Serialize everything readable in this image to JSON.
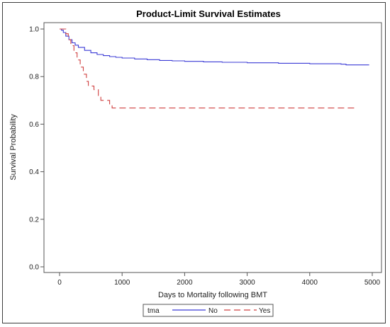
{
  "chart_data": {
    "type": "line",
    "title": "Product-Limit Survival Estimates",
    "xlabel": "Days to Mortality following BMT",
    "ylabel": "Survival Probability",
    "xlim": [
      -300,
      5000
    ],
    "ylim": [
      0,
      1.0
    ],
    "xticks": [
      "0",
      "1000",
      "2000",
      "3000",
      "4000",
      "5000"
    ],
    "yticks": [
      "0.0",
      "0.2",
      "0.4",
      "0.6",
      "0.8",
      "1.0"
    ],
    "legend": {
      "title": "tma",
      "position": "bottom",
      "entries": [
        "No",
        "Yes"
      ]
    },
    "series": [
      {
        "name": "No",
        "color": "#3b3bd6",
        "dash": "solid",
        "step": true,
        "points": [
          [
            0,
            1.0
          ],
          [
            30,
            0.995
          ],
          [
            60,
            0.985
          ],
          [
            100,
            0.97
          ],
          [
            150,
            0.955
          ],
          [
            200,
            0.942
          ],
          [
            250,
            0.932
          ],
          [
            300,
            0.923
          ],
          [
            400,
            0.91
          ],
          [
            500,
            0.9
          ],
          [
            600,
            0.893
          ],
          [
            700,
            0.888
          ],
          [
            800,
            0.884
          ],
          [
            900,
            0.881
          ],
          [
            1000,
            0.878
          ],
          [
            1200,
            0.874
          ],
          [
            1400,
            0.871
          ],
          [
            1600,
            0.868
          ],
          [
            1800,
            0.866
          ],
          [
            2000,
            0.864
          ],
          [
            2300,
            0.862
          ],
          [
            2600,
            0.86
          ],
          [
            3000,
            0.858
          ],
          [
            3500,
            0.856
          ],
          [
            4000,
            0.854
          ],
          [
            4500,
            0.852
          ],
          [
            4580,
            0.849
          ],
          [
            4950,
            0.849
          ]
        ]
      },
      {
        "name": "Yes",
        "color": "#d04040",
        "dash": "dashed",
        "step": true,
        "points": [
          [
            0,
            1.0
          ],
          [
            100,
            0.98
          ],
          [
            140,
            0.955
          ],
          [
            180,
            0.93
          ],
          [
            230,
            0.9
          ],
          [
            280,
            0.87
          ],
          [
            330,
            0.84
          ],
          [
            380,
            0.81
          ],
          [
            430,
            0.78
          ],
          [
            460,
            0.76
          ],
          [
            550,
            0.745
          ],
          [
            620,
            0.72
          ],
          [
            660,
            0.7
          ],
          [
            800,
            0.685
          ],
          [
            840,
            0.668
          ],
          [
            4750,
            0.668
          ]
        ]
      }
    ]
  }
}
